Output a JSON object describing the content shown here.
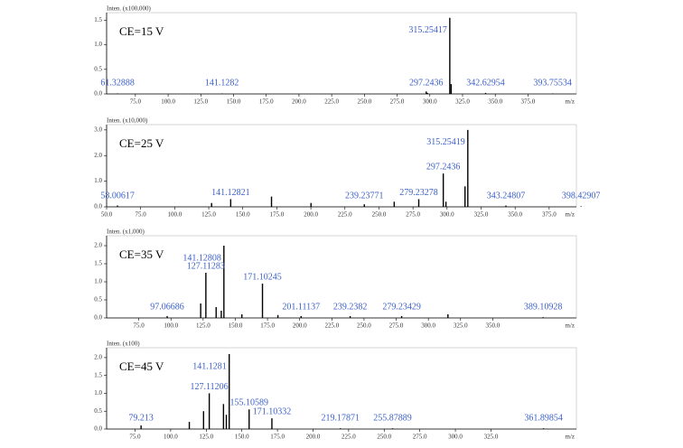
{
  "chart_data": [
    {
      "type": "stem",
      "title": "CE=15 V",
      "ylabel": "Inten. (x100,000)",
      "xlabel": "m/z",
      "color": "#000000",
      "label_color": "#3a5fc8",
      "x": [
        61.32888,
        141.1282,
        297.2436,
        298.2,
        315.25417,
        316.3,
        342.62954,
        393.75534
      ],
      "values": [
        0.01,
        0.01,
        0.05,
        0.02,
        1.55,
        0.2,
        0.02,
        0.01
      ],
      "labels": [
        61.32888,
        141.1282,
        297.2436,
        315.25417,
        342.62954,
        393.75534
      ],
      "xlim": [
        53,
        412
      ],
      "ylim": [
        0,
        1.6
      ],
      "xticks": [
        {
          "value": 75,
          "label": "75.0"
        },
        {
          "value": 100,
          "label": "100.0"
        },
        {
          "value": 125,
          "label": "125.0"
        },
        {
          "value": 150,
          "label": "150.0"
        },
        {
          "value": 175,
          "label": "175.0"
        },
        {
          "value": 200,
          "label": "200.0"
        },
        {
          "value": 225,
          "label": "225.0"
        },
        {
          "value": 250,
          "label": "250.0"
        },
        {
          "value": 275,
          "label": "275.0"
        },
        {
          "value": 300,
          "label": "300.0"
        },
        {
          "value": 325,
          "label": "325.0"
        },
        {
          "value": 350,
          "label": "350.0"
        },
        {
          "value": 375,
          "label": "375.0"
        }
      ],
      "yticks": [
        {
          "value": 0,
          "label": "0.0"
        },
        0.5,
        {
          "value": 1,
          "label": "1.0"
        },
        1.5
      ]
    },
    {
      "type": "stem",
      "title": "CE=25 V",
      "ylabel": "Inten. (x10,000)",
      "xlabel": "m/z",
      "color": "#000000",
      "label_color": "#3a5fc8",
      "x": [
        58.00617,
        127.1,
        141.12821,
        171.1,
        200.1,
        239.23771,
        261.2,
        279.23278,
        297.2436,
        299.2,
        313.2,
        315.25419,
        343.24807,
        398.42907
      ],
      "values": [
        0.05,
        0.15,
        0.3,
        0.4,
        0.15,
        0.1,
        0.2,
        0.3,
        1.3,
        0.2,
        0.8,
        3.0,
        0.05,
        0.02
      ],
      "labels": [
        58.00617,
        141.12821,
        239.23771,
        279.23278,
        297.2436,
        315.25419,
        343.24807,
        398.42907
      ],
      "xlim": [
        50,
        395
      ],
      "ylim": [
        0,
        3.1
      ],
      "xticks": [
        {
          "value": 50,
          "label": "50.0"
        },
        {
          "value": 75,
          "label": "75.0"
        },
        {
          "value": 100,
          "label": "100.0"
        },
        {
          "value": 125,
          "label": "125.0"
        },
        {
          "value": 150,
          "label": "150.0"
        },
        {
          "value": 175,
          "label": "175.0"
        },
        {
          "value": 200,
          "label": "200.0"
        },
        {
          "value": 225,
          "label": "225.0"
        },
        {
          "value": 250,
          "label": "250.0"
        },
        {
          "value": 275,
          "label": "275.0"
        },
        {
          "value": 300,
          "label": "300.0"
        },
        {
          "value": 325,
          "label": "325.0"
        },
        {
          "value": 350,
          "label": "350.0"
        },
        {
          "value": 375,
          "label": "375.0"
        }
      ],
      "yticks": [
        {
          "value": 0,
          "label": "0.0"
        },
        {
          "value": 1,
          "label": "1.0"
        },
        {
          "value": 2,
          "label": "2.0"
        },
        {
          "value": 3,
          "label": "3.0"
        }
      ]
    },
    {
      "type": "stem",
      "title": "CE=35 V",
      "ylabel": "Inten. (x1,000)",
      "xlabel": "m/z",
      "color": "#000000",
      "label_color": "#3a5fc8",
      "x": [
        97.06686,
        123.1,
        127.11283,
        135.1,
        139.1,
        141.12808,
        155.1,
        171.10245,
        183.1,
        201.11137,
        239.2382,
        279.23429,
        315.2,
        389.10928
      ],
      "values": [
        0.05,
        0.4,
        1.25,
        0.3,
        0.2,
        2.0,
        0.1,
        0.95,
        0.08,
        0.05,
        0.05,
        0.05,
        0.1,
        0.02
      ],
      "labels": [
        97.06686,
        127.11283,
        141.12808,
        171.10245,
        201.11137,
        239.2382,
        279.23429,
        389.10928
      ],
      "xlim": [
        50,
        415
      ],
      "ylim": [
        0,
        2.2
      ],
      "xticks": [
        {
          "value": 75,
          "label": "75.0"
        },
        {
          "value": 100,
          "label": "100.0"
        },
        {
          "value": 125,
          "label": "125.0"
        },
        {
          "value": 150,
          "label": "150.0"
        },
        {
          "value": 175,
          "label": "175.0"
        },
        {
          "value": 200,
          "label": "200.0"
        },
        {
          "value": 225,
          "label": "225.0"
        },
        {
          "value": 250,
          "label": "250.0"
        },
        {
          "value": 275,
          "label": "275.0"
        },
        {
          "value": 300,
          "label": "300.0"
        },
        {
          "value": 325,
          "label": "325.0"
        },
        {
          "value": 350,
          "label": "350.0"
        }
      ],
      "yticks": [
        {
          "value": 0,
          "label": "0.0"
        },
        0.5,
        {
          "value": 1,
          "label": "1.0"
        },
        1.5,
        {
          "value": 2,
          "label": "2.0"
        }
      ]
    },
    {
      "type": "stem",
      "title": "CE=45 V",
      "ylabel": "Inten. (x100)",
      "xlabel": "m/z",
      "color": "#000000",
      "label_color": "#3a5fc8",
      "x": [
        79.213,
        113.1,
        123.1,
        127.11206,
        137.1,
        139.1,
        141.1281,
        155.10589,
        171.10332,
        219.17871,
        255.87889,
        361.89854
      ],
      "values": [
        0.1,
        0.2,
        0.5,
        1.0,
        0.7,
        0.4,
        2.1,
        0.55,
        0.3,
        0.02,
        0.02,
        0.02
      ],
      "labels": [
        79.213,
        127.11206,
        141.1281,
        155.10589,
        171.10332,
        219.17871,
        255.87889,
        361.89854
      ],
      "xlim": [
        55,
        385
      ],
      "ylim": [
        0,
        2.2
      ],
      "xticks": [
        {
          "value": 75,
          "label": "75.0"
        },
        {
          "value": 100,
          "label": "100.0"
        },
        {
          "value": 125,
          "label": "125.0"
        },
        {
          "value": 150,
          "label": "150.0"
        },
        {
          "value": 175,
          "label": "175.0"
        },
        {
          "value": 200,
          "label": "200.0"
        },
        {
          "value": 225,
          "label": "225.0"
        },
        {
          "value": 250,
          "label": "250.0"
        },
        {
          "value": 275,
          "label": "275.0"
        },
        {
          "value": 300,
          "label": "300.0"
        },
        {
          "value": 325,
          "label": "325.0"
        }
      ],
      "yticks": [
        {
          "value": 0,
          "label": "0.0"
        },
        0.5,
        {
          "value": 1,
          "label": "1.0"
        },
        1.5,
        {
          "value": 2,
          "label": "2.0"
        }
      ]
    }
  ]
}
